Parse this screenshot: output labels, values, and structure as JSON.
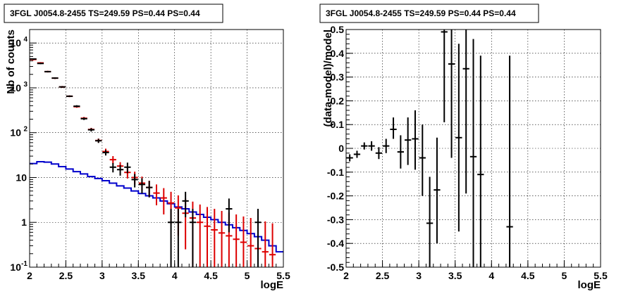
{
  "chart_data": [
    {
      "type": "histogram",
      "title": "3FGL J0054.8-2455 TS=249.59 PS=0.44 PS=0.44",
      "xlabel": "logE",
      "ylabel": "Nb of counts",
      "xlim": [
        2,
        5.5
      ],
      "ylim": [
        0.1,
        20000
      ],
      "y_scale": "log",
      "grid": true,
      "x_ticks": [
        "2",
        "2.5",
        "3",
        "3.5",
        "4",
        "4.5",
        "5",
        "5.5"
      ],
      "y_ticks": [
        {
          "value": 0.1,
          "label": "10",
          "exp": "-1"
        },
        {
          "value": 1,
          "label": "1",
          "exp": ""
        },
        {
          "value": 10,
          "label": "10",
          "exp": ""
        },
        {
          "value": 100,
          "label": "10",
          "exp": "2"
        },
        {
          "value": 1000,
          "label": "10",
          "exp": "3"
        },
        {
          "value": 10000,
          "label": "10",
          "exp": "4"
        }
      ],
      "bin_edges": [
        2.0,
        2.1,
        2.2,
        2.3,
        2.4,
        2.5,
        2.6,
        2.7,
        2.8,
        2.9,
        3.0,
        3.1,
        3.2,
        3.3,
        3.4,
        3.5,
        3.6,
        3.7,
        3.8,
        3.9,
        4.0,
        4.1,
        4.2,
        4.3,
        4.4,
        4.5,
        4.6,
        4.7,
        4.8,
        4.9,
        5.0,
        5.1,
        5.2,
        5.3,
        5.4,
        5.5
      ],
      "series": [
        {
          "color": "#0000cc",
          "style": "step",
          "values": [
            20.5,
            22.5,
            22.0,
            20.0,
            17.5,
            15.5,
            13.5,
            12.0,
            10.5,
            9.5,
            8.5,
            7.5,
            6.5,
            5.8,
            5.0,
            4.4,
            3.9,
            3.5,
            3.0,
            2.6,
            2.2,
            2.0,
            1.7,
            1.5,
            1.3,
            1.15,
            1.0,
            0.88,
            0.76,
            0.66,
            0.56,
            0.48,
            0.4,
            0.3,
            0.22
          ]
        },
        {
          "color": "#dd0000",
          "style": "errorbar",
          "points": [
            {
              "x": 2.05,
              "y": 4300,
              "lo": 4100,
              "hi": 4500
            },
            {
              "x": 2.15,
              "y": 3600,
              "lo": 3450,
              "hi": 3750
            },
            {
              "x": 2.25,
              "y": 2300,
              "lo": 2200,
              "hi": 2400
            },
            {
              "x": 2.35,
              "y": 1650,
              "lo": 1580,
              "hi": 1720
            },
            {
              "x": 2.45,
              "y": 1050,
              "lo": 1000,
              "hi": 1100
            },
            {
              "x": 2.55,
              "y": 650,
              "lo": 620,
              "hi": 680
            },
            {
              "x": 2.65,
              "y": 380,
              "lo": 360,
              "hi": 400
            },
            {
              "x": 2.75,
              "y": 210,
              "lo": 196,
              "hi": 224
            },
            {
              "x": 2.85,
              "y": 118,
              "lo": 108,
              "hi": 128
            },
            {
              "x": 2.95,
              "y": 67,
              "lo": 60,
              "hi": 74
            },
            {
              "x": 3.05,
              "y": 38,
              "lo": 33,
              "hi": 44
            },
            {
              "x": 3.15,
              "y": 25,
              "lo": 20,
              "hi": 30
            },
            {
              "x": 3.25,
              "y": 18,
              "lo": 14,
              "hi": 22
            },
            {
              "x": 3.35,
              "y": 13,
              "lo": 9.5,
              "hi": 17
            },
            {
              "x": 3.45,
              "y": 10,
              "lo": 7,
              "hi": 13.5
            },
            {
              "x": 3.55,
              "y": 7.5,
              "lo": 5,
              "hi": 10.5
            },
            {
              "x": 3.65,
              "y": 6,
              "lo": 3.7,
              "hi": 8.5
            },
            {
              "x": 3.75,
              "y": 4.5,
              "lo": 2.4,
              "hi": 7
            },
            {
              "x": 3.85,
              "y": 3.5,
              "lo": 1.5,
              "hi": 5.8
            },
            {
              "x": 3.95,
              "y": 2.7,
              "lo": 0.9,
              "hi": 4.8
            },
            {
              "x": 4.05,
              "y": 2.1,
              "lo": 0.5,
              "hi": 4
            },
            {
              "x": 4.15,
              "y": 1.6,
              "lo": 0.25,
              "hi": 3.4
            },
            {
              "x": 4.25,
              "y": 1.25,
              "lo": 0.1,
              "hi": 2.9
            },
            {
              "x": 4.35,
              "y": 1,
              "lo": 0.1,
              "hi": 2.5
            },
            {
              "x": 4.45,
              "y": 0.82,
              "lo": 0.1,
              "hi": 2.2
            },
            {
              "x": 4.55,
              "y": 0.68,
              "lo": 0.1,
              "hi": 2
            },
            {
              "x": 4.65,
              "y": 0.58,
              "lo": 0.1,
              "hi": 1.8
            },
            {
              "x": 4.75,
              "y": 0.5,
              "lo": 0.1,
              "hi": 1.65
            },
            {
              "x": 4.85,
              "y": 0.42,
              "lo": 0.1,
              "hi": 1.5
            },
            {
              "x": 4.95,
              "y": 0.36,
              "lo": 0.1,
              "hi": 1.35
            },
            {
              "x": 5.05,
              "y": 0.3,
              "lo": 0.1,
              "hi": 1.25
            },
            {
              "x": 5.15,
              "y": 0.26,
              "lo": 0.1,
              "hi": 1.15
            },
            {
              "x": 5.25,
              "y": 0.22,
              "lo": 0.1,
              "hi": 1.05
            },
            {
              "x": 5.35,
              "y": 0.19,
              "lo": 0.1,
              "hi": 0.95
            }
          ]
        },
        {
          "color": "#000000",
          "style": "errorbar",
          "points": [
            {
              "x": 2.05,
              "y": 4400,
              "lo": 4250,
              "hi": 4550
            },
            {
              "x": 2.15,
              "y": 3500,
              "lo": 3380,
              "hi": 3620
            },
            {
              "x": 2.25,
              "y": 2300,
              "lo": 2220,
              "hi": 2380
            },
            {
              "x": 2.35,
              "y": 1650,
              "lo": 1590,
              "hi": 1710
            },
            {
              "x": 2.45,
              "y": 1050,
              "lo": 1010,
              "hi": 1090
            },
            {
              "x": 2.55,
              "y": 650,
              "lo": 625,
              "hi": 675
            },
            {
              "x": 2.65,
              "y": 390,
              "lo": 370,
              "hi": 410
            },
            {
              "x": 2.75,
              "y": 205,
              "lo": 192,
              "hi": 218
            },
            {
              "x": 2.85,
              "y": 116,
              "lo": 106,
              "hi": 126
            },
            {
              "x": 2.95,
              "y": 66,
              "lo": 59,
              "hi": 73
            },
            {
              "x": 3.05,
              "y": 36,
              "lo": 31,
              "hi": 41
            },
            {
              "x": 3.15,
              "y": 17,
              "lo": 13,
              "hi": 21
            },
            {
              "x": 3.25,
              "y": 15,
              "lo": 11,
              "hi": 19
            },
            {
              "x": 3.35,
              "y": 17,
              "lo": 12.5,
              "hi": 21.5
            },
            {
              "x": 3.45,
              "y": 9,
              "lo": 6,
              "hi": 12
            },
            {
              "x": 3.55,
              "y": 7,
              "lo": 4.4,
              "hi": 9.6
            },
            {
              "x": 3.65,
              "y": 6,
              "lo": 3.6,
              "hi": 8.4
            },
            {
              "x": 3.95,
              "y": 1,
              "lo": 0.1,
              "hi": 2
            },
            {
              "x": 4.05,
              "y": 1,
              "lo": 0.1,
              "hi": 2
            },
            {
              "x": 4.15,
              "y": 3,
              "lo": 1.3,
              "hi": 4.8
            },
            {
              "x": 4.25,
              "y": 1,
              "lo": 0.1,
              "hi": 2
            },
            {
              "x": 4.75,
              "y": 2,
              "lo": 0.6,
              "hi": 3.4
            },
            {
              "x": 5.15,
              "y": 1,
              "lo": 0.1,
              "hi": 2
            }
          ]
        }
      ]
    },
    {
      "type": "errorbar",
      "title": "3FGL J0054.8-2455 TS=249.59 PS=0.44 PS=0.44",
      "xlabel": "logE",
      "ylabel": "(data-model)/model",
      "xlim": [
        2,
        5.5
      ],
      "ylim": [
        -0.5,
        0.5
      ],
      "grid": true,
      "x_ticks": [
        "2",
        "2.5",
        "3",
        "3.5",
        "4",
        "4.5",
        "5",
        "5.5"
      ],
      "y_ticks": [
        "-0.5",
        "-0.4",
        "-0.3",
        "-0.2",
        "-0.1",
        "0",
        "0.1",
        "0.2",
        "0.3",
        "0.4",
        "0.5"
      ],
      "points": [
        {
          "x": 2.05,
          "y": -0.04,
          "lo": -0.055,
          "hi": -0.025
        },
        {
          "x": 2.15,
          "y": -0.025,
          "lo": -0.04,
          "hi": -0.01
        },
        {
          "x": 2.25,
          "y": 0.01,
          "lo": -0.005,
          "hi": 0.025
        },
        {
          "x": 2.35,
          "y": 0.01,
          "lo": -0.01,
          "hi": 0.03
        },
        {
          "x": 2.45,
          "y": -0.02,
          "lo": -0.045,
          "hi": 0.005
        },
        {
          "x": 2.55,
          "y": 0.01,
          "lo": -0.02,
          "hi": 0.04
        },
        {
          "x": 2.65,
          "y": 0.08,
          "lo": 0.04,
          "hi": 0.13
        },
        {
          "x": 2.75,
          "y": -0.015,
          "lo": -0.085,
          "hi": 0.055
        },
        {
          "x": 2.85,
          "y": 0.035,
          "lo": -0.07,
          "hi": 0.13
        },
        {
          "x": 2.95,
          "y": 0.04,
          "lo": -0.09,
          "hi": 0.16
        },
        {
          "x": 3.05,
          "y": -0.04,
          "lo": -0.2,
          "hi": 0.1
        },
        {
          "x": 3.15,
          "y": -0.315,
          "lo": -0.5,
          "hi": -0.12
        },
        {
          "x": 3.25,
          "y": -0.175,
          "lo": -0.4,
          "hi": 0.045
        },
        {
          "x": 3.35,
          "y": 0.49,
          "lo": 0.11,
          "hi": 0.5
        },
        {
          "x": 3.45,
          "y": 0.355,
          "lo": -0.04,
          "hi": 0.5
        },
        {
          "x": 3.55,
          "y": 0.045,
          "lo": -0.35,
          "hi": 0.44
        },
        {
          "x": 3.65,
          "y": 0.335,
          "lo": -0.19,
          "hi": 0.5
        },
        {
          "x": 3.75,
          "y": -0.035,
          "lo": -0.5,
          "hi": 0.46
        },
        {
          "x": 3.85,
          "y": -0.11,
          "lo": -0.5,
          "hi": 0.39
        },
        {
          "x": 4.25,
          "y": -0.33,
          "lo": -0.5,
          "hi": 0.39
        }
      ]
    }
  ]
}
